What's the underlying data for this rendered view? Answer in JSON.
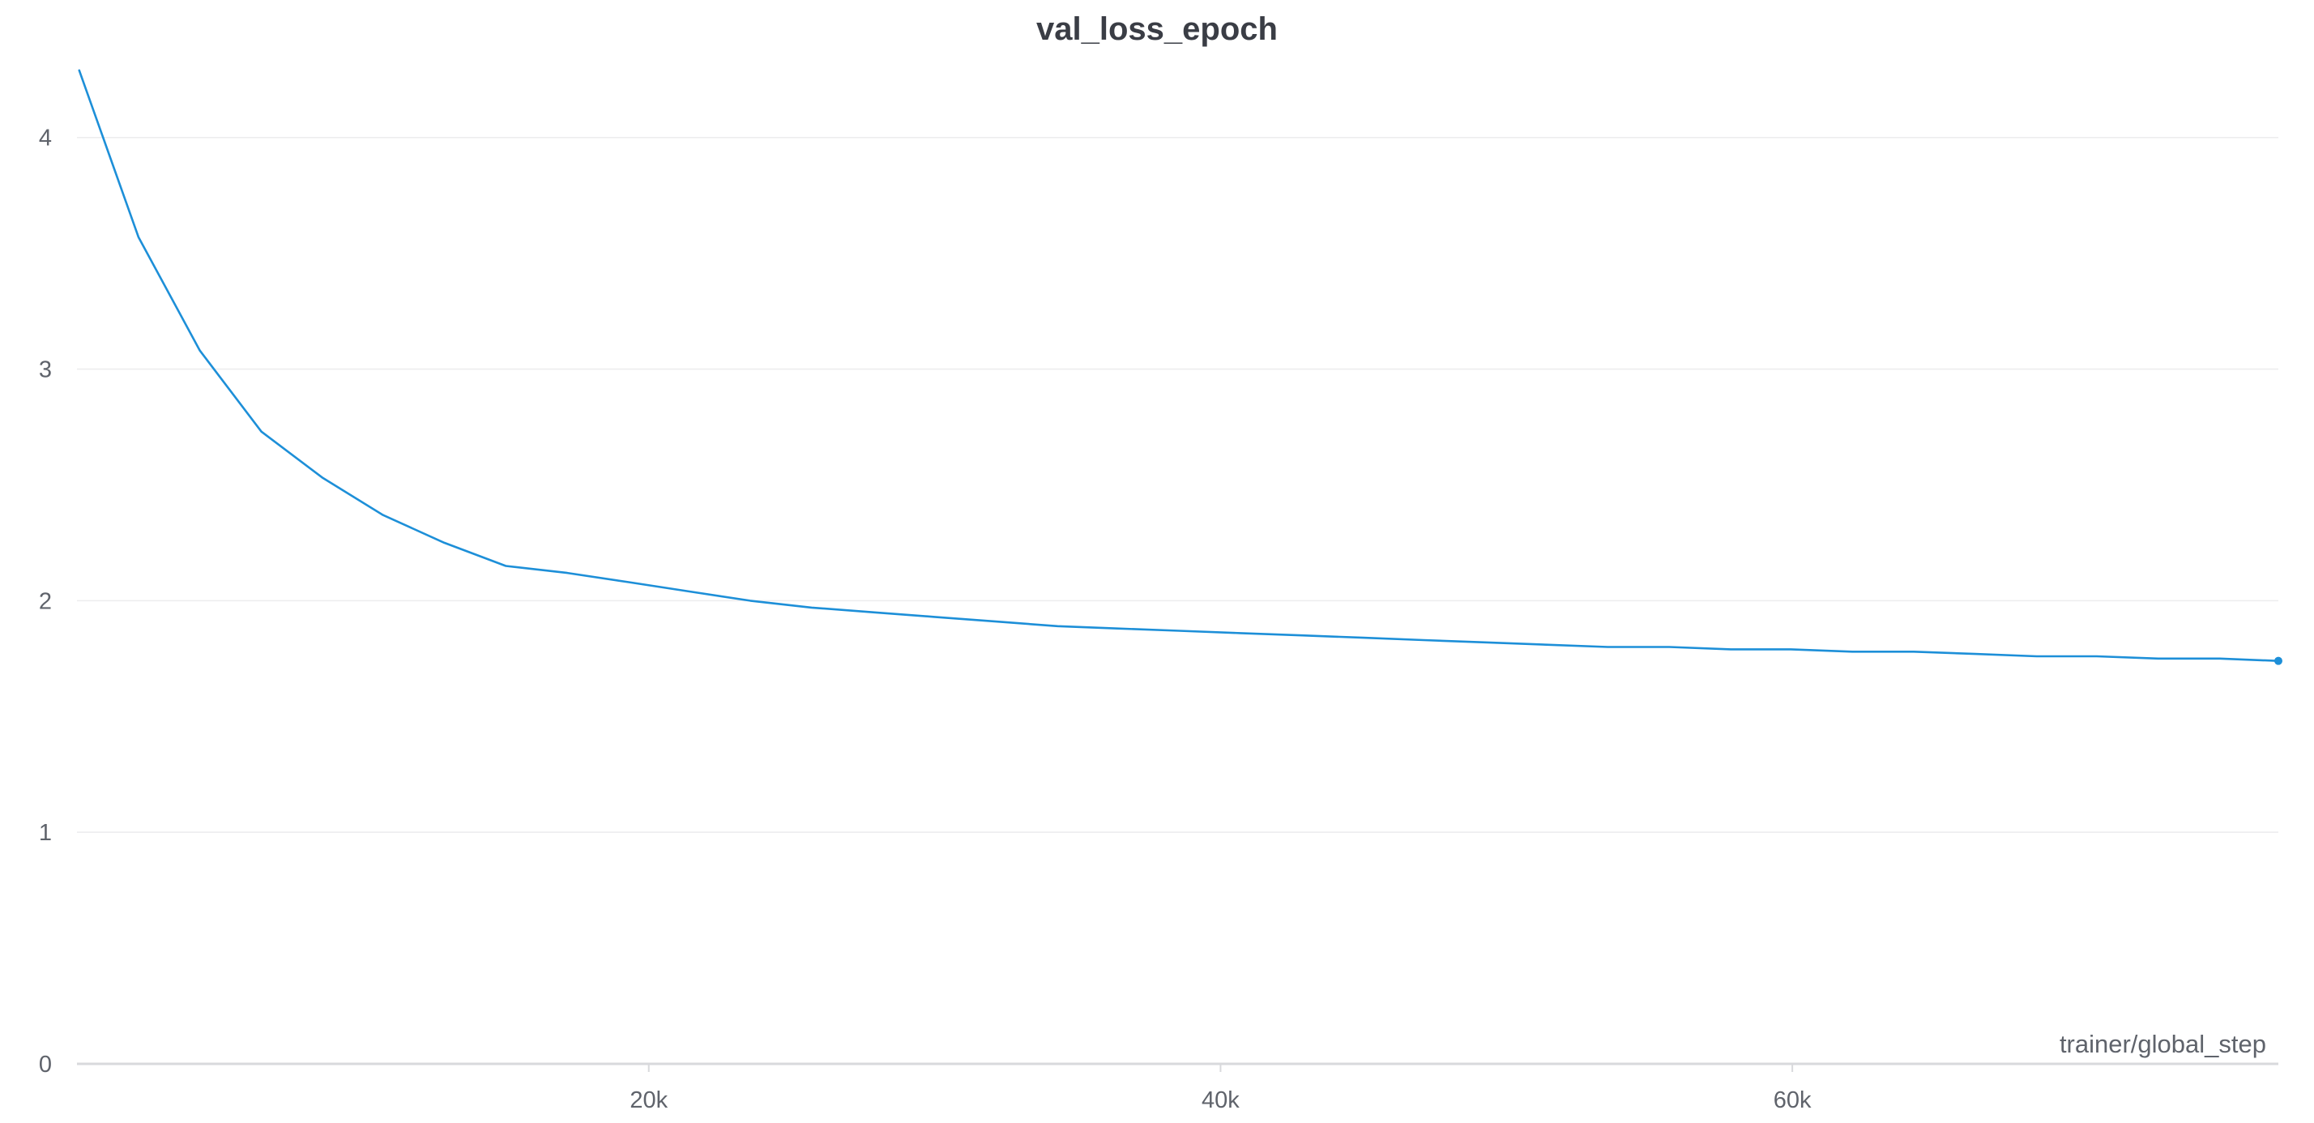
{
  "chart_data": {
    "type": "line",
    "title": "val_loss_epoch",
    "xlabel": "trainer/global_step",
    "ylabel": "",
    "xlim": [
      0,
      77000
    ],
    "ylim": [
      0,
      4.3
    ],
    "grid": true,
    "legend": "none",
    "x_ticks": [
      {
        "value": 20000,
        "label": "20k"
      },
      {
        "value": 40000,
        "label": "40k"
      },
      {
        "value": 60000,
        "label": "60k"
      }
    ],
    "y_ticks": [
      {
        "value": 0,
        "label": "0"
      },
      {
        "value": 1,
        "label": "1"
      },
      {
        "value": 2,
        "label": "2"
      },
      {
        "value": 3,
        "label": "3"
      },
      {
        "value": 4,
        "label": "4"
      }
    ],
    "series": [
      {
        "color": "#1d8fd8",
        "x": [
          80,
          2150,
          4300,
          6450,
          8600,
          10700,
          12850,
          15000,
          17150,
          19300,
          21400,
          23550,
          25700,
          27850,
          30000,
          32150,
          34300,
          36400,
          38550,
          40700,
          42850,
          45000,
          47100,
          49250,
          51400,
          53550,
          55700,
          57850,
          59950,
          62100,
          64250,
          66400,
          68550,
          70650,
          72800,
          74950,
          77000
        ],
        "y": [
          4.29,
          3.57,
          3.08,
          2.73,
          2.53,
          2.37,
          2.25,
          2.15,
          2.12,
          2.08,
          2.04,
          2.0,
          1.97,
          1.95,
          1.93,
          1.91,
          1.89,
          1.88,
          1.87,
          1.86,
          1.85,
          1.84,
          1.83,
          1.82,
          1.81,
          1.8,
          1.8,
          1.79,
          1.79,
          1.78,
          1.78,
          1.77,
          1.76,
          1.76,
          1.75,
          1.75,
          1.74
        ]
      }
    ]
  }
}
